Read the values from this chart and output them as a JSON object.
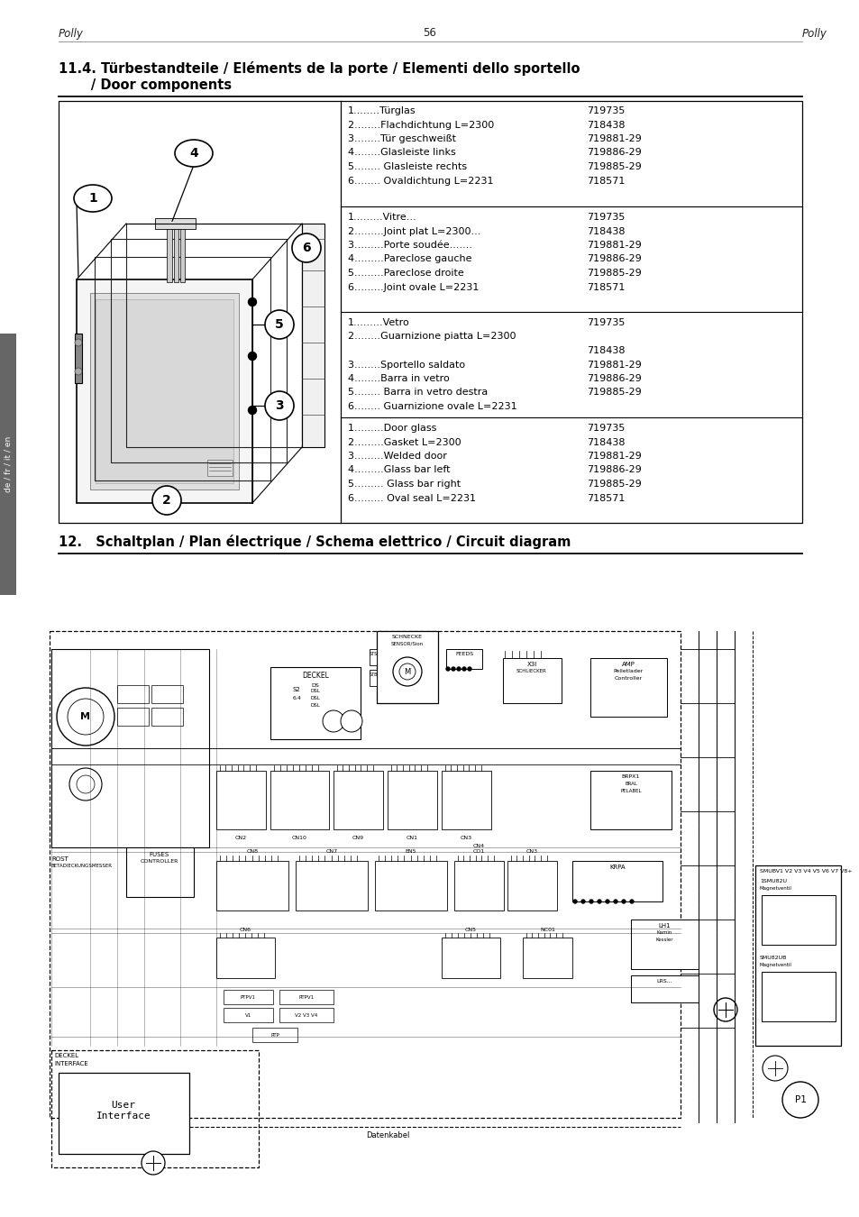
{
  "page_header_left": "Polly",
  "page_header_center": "56",
  "page_header_right": "Polly",
  "section_title_1a": "11.4. Türbestandteile / Eléments de la porte / Elementi dello sportello",
  "section_title_1b": "       / Door components",
  "section_title_2": "12.   Schaltplan / Plan électrique / Schema elettrico / Circuit diagram",
  "table_rows_de": [
    [
      "1........Türglas",
      "719735"
    ],
    [
      "2........Flachdichtung L=2300",
      "718438"
    ],
    [
      "3........Tür geschweißt",
      "719881-29"
    ],
    [
      "4........Glasleiste links",
      "719886-29"
    ],
    [
      "5........ Glasleiste rechts",
      "719885-29"
    ],
    [
      "6........ Ovaldichtung L=2231",
      "718571"
    ]
  ],
  "table_rows_fr": [
    [
      "1.........Vitre...",
      "719735"
    ],
    [
      "2.........Joint plat L=2300...",
      "718438"
    ],
    [
      "3.........Porte soudée.......",
      "719881-29"
    ],
    [
      "4.........Pareclose gauche",
      "719886-29"
    ],
    [
      "5.........Pareclose droite",
      "719885-29"
    ],
    [
      "6.........Joint ovale L=2231",
      "718571"
    ]
  ],
  "table_rows_it_line1": "1.........Vetro",
  "table_rows_it_line1_code": "719735",
  "table_rows_it_line2": "2........Guarnizione piatta L=2300",
  "table_rows_it_line2b_code": "718438",
  "table_rows_it_line3": "3........Sportello saldato",
  "table_rows_it_line3_code": "719881-29",
  "table_rows_it_line4": "4........Barra in vetro",
  "table_rows_it_line4_code": "719886-29",
  "table_rows_it_line5": "5........ Barra in vetro destra",
  "table_rows_it_line5_code": "719885-29",
  "table_rows_it_line6": "6........ Guarnizione ovale L=2231",
  "table_rows_en": [
    [
      "1.........Door glass",
      "719735"
    ],
    [
      "2.........Gasket L=2300",
      "718438"
    ],
    [
      "3.........Welded door",
      "719881-29"
    ],
    [
      "4.........Glass bar left",
      "719886-29"
    ],
    [
      "5......... Glass bar right",
      "719885-29"
    ],
    [
      "6......... Oval seal L=2231",
      "718571"
    ]
  ],
  "bg_color": "#ffffff",
  "text_color": "#000000"
}
